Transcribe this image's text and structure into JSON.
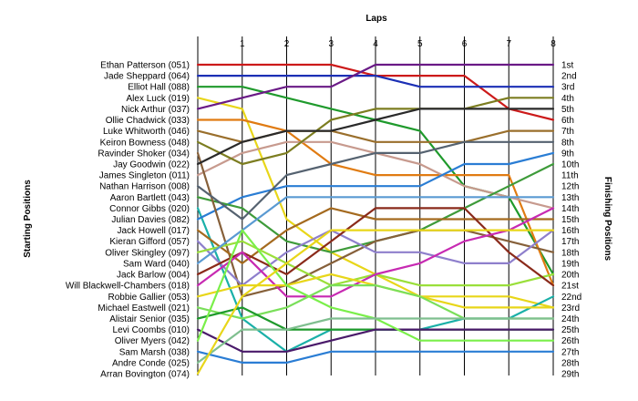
{
  "chart_data": {
    "type": "line",
    "title": "",
    "top_axis_title": "Laps",
    "left_axis_title": "Starting Positions",
    "right_axis_title": "Finishing Positions",
    "laps": [
      0,
      1,
      2,
      3,
      4,
      5,
      6,
      7,
      8
    ],
    "lap_tick_labels": [
      "1",
      "2",
      "3",
      "4",
      "5",
      "6",
      "7",
      "8"
    ],
    "y_range": [
      1,
      29
    ],
    "grid": true,
    "starting_labels": [
      "Ethan Patterson (051)",
      "Jade Sheppard (064)",
      "Elliot Hall (088)",
      "Alex Luck (019)",
      "Nick Arthur (037)",
      "Ollie Chadwick (033)",
      "Luke Whitworth (046)",
      "Keiron Bowness (048)",
      "Ravinder Shoker (034)",
      "Jay Goodwin (022)",
      "James Singleton (011)",
      "Nathan Harrison (008)",
      "Aaron Bartlett (043)",
      "Connor Gibbs (020)",
      "Julian Davies (082)",
      "Jack Howell (017)",
      "Kieran Gifford (057)",
      "Oliver Skingley (097)",
      "Sam Ward (040)",
      "Jack Barlow (004)",
      "Will Blackwell-Chambers (018)",
      "Robbie Gallier (053)",
      "Michael Eastwell (021)",
      "Alistair Senior (035)",
      "Levi Coombs (010)",
      "Oliver Myers (042)",
      "Sam Marsh (038)",
      "Andre Conde (025)",
      "Arran Bovington (074)"
    ],
    "finishing_labels": [
      "1st",
      "2nd",
      "3rd",
      "4th",
      "5th",
      "6th",
      "7th",
      "8th",
      "9th",
      "10th",
      "11th",
      "12th",
      "13th",
      "14th",
      "15th",
      "16th",
      "17th",
      "18th",
      "19th",
      "20th",
      "21st",
      "22nd",
      "23rd",
      "24th",
      "25th",
      "26th",
      "27th",
      "28th",
      "29th"
    ],
    "series": [
      {
        "color": "#cc1a1a",
        "positions": [
          1,
          1,
          1,
          1,
          2,
          2,
          2,
          5,
          6
        ]
      },
      {
        "color": "#1b2fb5",
        "positions": [
          2,
          2,
          2,
          2,
          2,
          3,
          3,
          3,
          3
        ]
      },
      {
        "color": "#1f9a2c",
        "positions": [
          3,
          3,
          4,
          5,
          6,
          7,
          12,
          13,
          20
        ]
      },
      {
        "color": "#e8d619",
        "positions": [
          4,
          5,
          15,
          18,
          20,
          22,
          22,
          22,
          23
        ]
      },
      {
        "color": "#6a1a86",
        "positions": [
          5,
          4,
          3,
          3,
          1,
          1,
          1,
          1,
          1
        ]
      },
      {
        "color": "#e07b12",
        "positions": [
          6,
          6,
          7,
          10,
          11,
          11,
          11,
          11,
          21
        ]
      },
      {
        "color": "#c79a8e",
        "positions": [
          11,
          9,
          8,
          8,
          9,
          10,
          12,
          13,
          14
        ]
      },
      {
        "color": "#1ab0a8",
        "positions": [
          14,
          24,
          27,
          25,
          25,
          25,
          24,
          24,
          22
        ]
      },
      {
        "color": "#2a7dd4",
        "positions": [
          15,
          13,
          12,
          12,
          12,
          12,
          10,
          10,
          9
        ]
      },
      {
        "color": "#3e9b3a",
        "positions": [
          13,
          14,
          17,
          18,
          17,
          16,
          14,
          12,
          10
        ]
      },
      {
        "color": "#9a6f2c",
        "positions": [
          7,
          8,
          7,
          7,
          8,
          8,
          8,
          7,
          7
        ]
      },
      {
        "color": "#7c7d20",
        "positions": [
          8,
          10,
          9,
          6,
          5,
          5,
          5,
          4,
          4
        ]
      },
      {
        "color": "#86603a",
        "positions": [
          9,
          22,
          21,
          19,
          17,
          16,
          16,
          17,
          18
        ]
      },
      {
        "color": "#2a2a2a",
        "positions": [
          10,
          8,
          7,
          7,
          6,
          5,
          5,
          5,
          5
        ]
      },
      {
        "color": "#556270",
        "positions": [
          12,
          15,
          11,
          10,
          9,
          9,
          8,
          8,
          8
        ]
      },
      {
        "color": "#a46a1f",
        "positions": [
          16,
          19,
          16,
          14,
          15,
          15,
          15,
          15,
          15
        ]
      },
      {
        "color": "#8e7fcc",
        "positions": [
          17,
          21,
          18,
          16,
          18,
          18,
          19,
          19,
          16
        ]
      },
      {
        "color": "#9adf3a",
        "positions": [
          18,
          17,
          19,
          21,
          20,
          21,
          21,
          21,
          20
        ]
      },
      {
        "color": "#5a9ad2",
        "positions": [
          19,
          16,
          13,
          13,
          13,
          13,
          13,
          13,
          13
        ]
      },
      {
        "color": "#8a2a1a",
        "positions": [
          20,
          18,
          20,
          17,
          14,
          14,
          14,
          18,
          21
        ]
      },
      {
        "color": "#c72ab2",
        "positions": [
          21,
          18,
          22,
          22,
          20,
          19,
          17,
          16,
          14
        ]
      },
      {
        "color": "#e8d619",
        "positions": [
          22,
          21,
          21,
          20,
          21,
          22,
          23,
          23,
          23
        ]
      },
      {
        "color": "#7adf5a",
        "positions": [
          23,
          24,
          23,
          21,
          21,
          22,
          24,
          24,
          24
        ]
      },
      {
        "color": "#1f9a2c",
        "positions": [
          24,
          23,
          25,
          25,
          25,
          25,
          25,
          25,
          25
        ]
      },
      {
        "color": "#4a1a6a",
        "positions": [
          25,
          27,
          27,
          26,
          25,
          25,
          25,
          25,
          25
        ]
      },
      {
        "color": "#7aef4a",
        "positions": [
          26,
          16,
          21,
          23,
          24,
          26,
          26,
          26,
          26
        ]
      },
      {
        "color": "#2a7dd4",
        "positions": [
          27,
          28,
          28,
          27,
          27,
          27,
          27,
          27,
          27
        ]
      },
      {
        "color": "#7fbf8f",
        "positions": [
          28,
          25,
          25,
          24,
          24,
          24,
          24,
          24,
          24
        ]
      },
      {
        "color": "#e8d619",
        "positions": [
          29,
          22,
          19,
          16,
          16,
          16,
          16,
          16,
          16
        ]
      }
    ]
  }
}
